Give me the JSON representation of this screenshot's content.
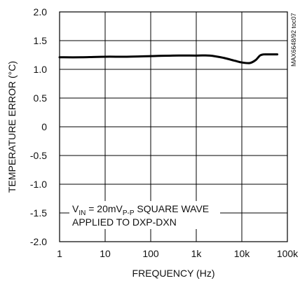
{
  "chart_data": {
    "type": "line",
    "xscale": "log",
    "xlim": [
      1,
      100000
    ],
    "ylim": [
      -2.0,
      2.0
    ],
    "grid": true,
    "xlabel": "FREQUENCY (Hz)",
    "ylabel": "TEMPERATURE ERROR (°C)",
    "x_ticks": [
      1,
      10,
      100,
      1000,
      10000,
      100000
    ],
    "x_tick_labels": [
      "1",
      "10",
      "100",
      "1k",
      "10k",
      "100k"
    ],
    "y_ticks": [
      2.0,
      1.5,
      1.0,
      0.5,
      0,
      -0.5,
      -1.0,
      -1.5,
      -2.0
    ],
    "y_tick_labels": [
      "2.0",
      "1.5",
      "1.0",
      "0.5",
      "0",
      "-0.5",
      "-1.0",
      "-1.5",
      "-2.0"
    ],
    "series": [
      {
        "x": [
          1,
          3,
          10,
          30,
          100,
          300,
          1000,
          2000,
          4000,
          7000,
          10000,
          15000,
          20000,
          25000,
          30000,
          40000,
          60000
        ],
        "y": [
          1.21,
          1.21,
          1.22,
          1.22,
          1.23,
          1.24,
          1.24,
          1.24,
          1.2,
          1.15,
          1.12,
          1.11,
          1.16,
          1.24,
          1.26,
          1.26,
          1.26
        ]
      }
    ],
    "annotation": {
      "line1_prefix": "V",
      "line1_sub1": "IN",
      "line1_mid": " = 20mV",
      "line1_sub2": "P-P",
      "line1_suffix": " SQUARE WAVE",
      "line2": "APPLIED TO DXP-DXN"
    },
    "code_label": "MAX6648/92 toc07"
  }
}
